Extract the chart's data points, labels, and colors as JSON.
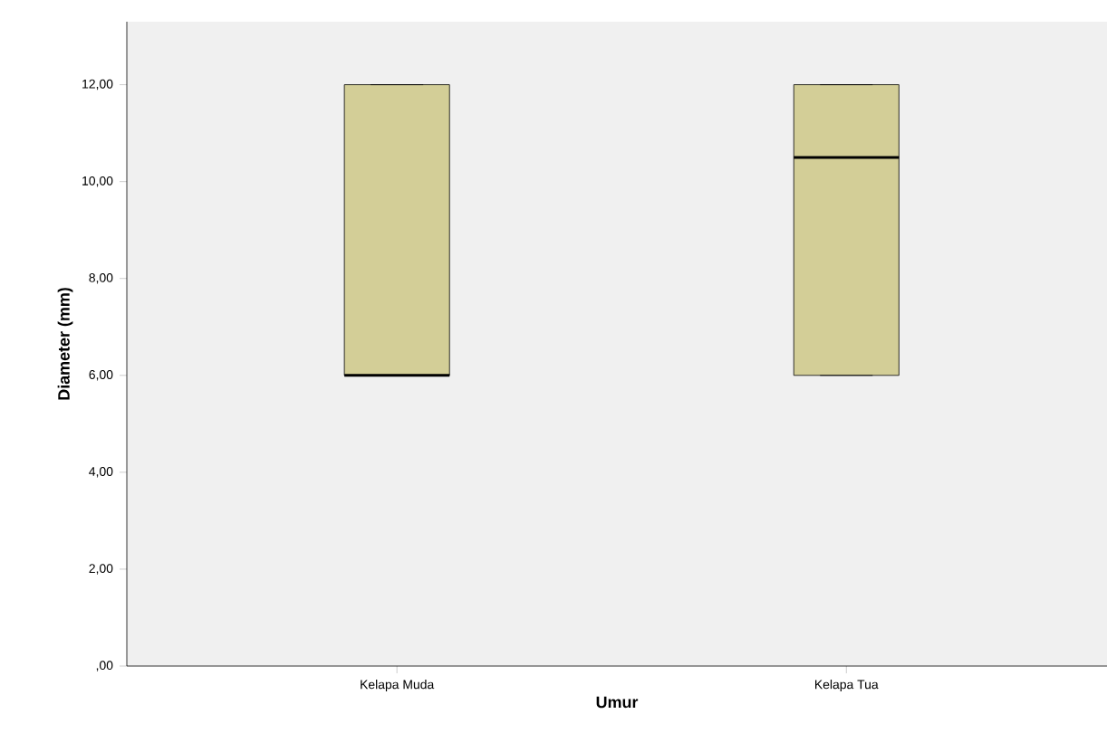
{
  "chart_data": {
    "type": "box",
    "xlabel": "Umur",
    "ylabel": "Diameter (mm)",
    "categories": [
      "Kelapa Muda",
      "Kelapa Tua"
    ],
    "color": "#d3ce97",
    "boxes": [
      {
        "low": 6,
        "q1": 6,
        "median": 6,
        "q3": 12,
        "high": 12
      },
      {
        "low": 6,
        "q1": 6,
        "median": 10.5,
        "q3": 12,
        "high": 12
      }
    ],
    "ylim": [
      0,
      13.3
    ],
    "yticks": [
      {
        "value": 0,
        "label": ",00"
      },
      {
        "value": 2,
        "label": "2,00"
      },
      {
        "value": 4,
        "label": "4,00"
      },
      {
        "value": 6,
        "label": "6,00"
      },
      {
        "value": 8,
        "label": "8,00"
      },
      {
        "value": 10,
        "label": "10,00"
      },
      {
        "value": 12,
        "label": "12,00"
      }
    ],
    "grid": false
  }
}
